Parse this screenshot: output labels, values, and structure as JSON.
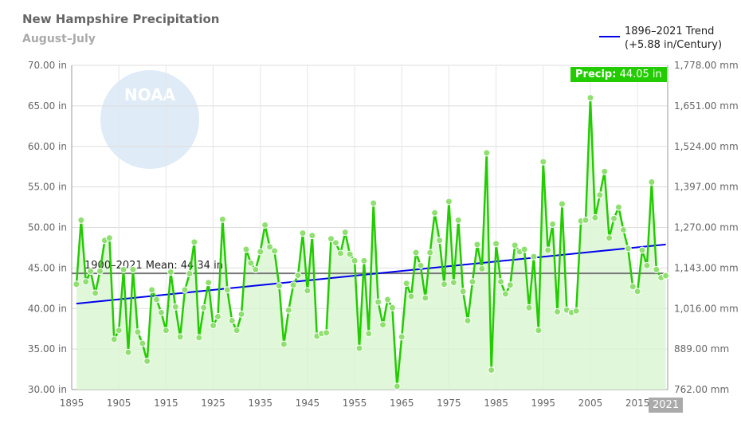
{
  "chart_data": {
    "type": "line",
    "title": "New Hampshire Precipitation",
    "subtitle": "August–July",
    "x_start": 1896,
    "x_end": 2021,
    "values": [
      43.0,
      50.9,
      43.3,
      44.6,
      41.9,
      44.6,
      48.4,
      48.7,
      36.2,
      37.3,
      44.8,
      34.6,
      44.8,
      37.1,
      35.7,
      33.5,
      42.3,
      41.1,
      39.5,
      37.3,
      44.5,
      40.2,
      36.5,
      42.3,
      44.3,
      48.2,
      36.4,
      40.1,
      43.2,
      37.9,
      39.0,
      51.0,
      42.3,
      38.5,
      37.3,
      39.3,
      47.3,
      45.6,
      44.8,
      47.0,
      50.3,
      47.6,
      47.1,
      42.8,
      35.6,
      39.8,
      42.9,
      44.1,
      49.3,
      42.2,
      49.0,
      36.6,
      36.9,
      37.0,
      48.6,
      48.1,
      46.8,
      49.4,
      46.7,
      45.9,
      35.1,
      45.9,
      36.9,
      53.0,
      40.8,
      38.0,
      41.1,
      40.1,
      30.4,
      36.5,
      43.1,
      41.5,
      46.9,
      45.3,
      41.3,
      46.9,
      51.8,
      48.4,
      43.0,
      53.2,
      43.2,
      50.9,
      42.1,
      38.5,
      43.3,
      47.9,
      44.9,
      59.2,
      32.4,
      48.0,
      43.3,
      41.8,
      42.9,
      47.8,
      47.0,
      47.3,
      40.1,
      46.4,
      37.3,
      58.1,
      47.2,
      50.4,
      39.6,
      52.9,
      39.8,
      39.5,
      39.7,
      50.8,
      50.9,
      66.0,
      51.2,
      54.0,
      56.9,
      48.7,
      51.1,
      52.5,
      49.7,
      47.4,
      42.7,
      42.1,
      47.2,
      45.3,
      55.6,
      44.8,
      43.8,
      44.05
    ],
    "ylim": [
      30,
      70
    ],
    "y_ticks": [
      "30.00 in",
      "35.00 in",
      "40.00 in",
      "45.00 in",
      "50.00 in",
      "55.00 in",
      "60.00 in",
      "65.00 in",
      "70.00 in"
    ],
    "y2_ticks": [
      "762.00 mm",
      "889.00 mm",
      "1,016.00 mm",
      "1,143.00 mm",
      "1,270.00 mm",
      "1,397.00 mm",
      "1,524.00 mm",
      "1,651.00 mm",
      "1,778.00 mm"
    ],
    "x_ticks": [
      "1895",
      "1905",
      "1915",
      "1925",
      "1935",
      "1945",
      "1955",
      "1965",
      "1975",
      "1985",
      "1995",
      "2005",
      "2015"
    ],
    "mean": 44.34,
    "mean_label": "1900–2021 Mean: 44.34 in",
    "trend": {
      "start": 40.6,
      "end": 47.9,
      "legend_line1": "1896–2021 Trend",
      "legend_line2": "(+5.88 in/Century)"
    },
    "tooltip": {
      "label": "Precip:",
      "value": "44.05 in"
    },
    "highlight_x": "2021",
    "watermark": "NOAA",
    "colors": {
      "line": "#22cc00",
      "trend": "#0000ee",
      "mean": "#777777",
      "fill": "#d8f5d0"
    }
  }
}
